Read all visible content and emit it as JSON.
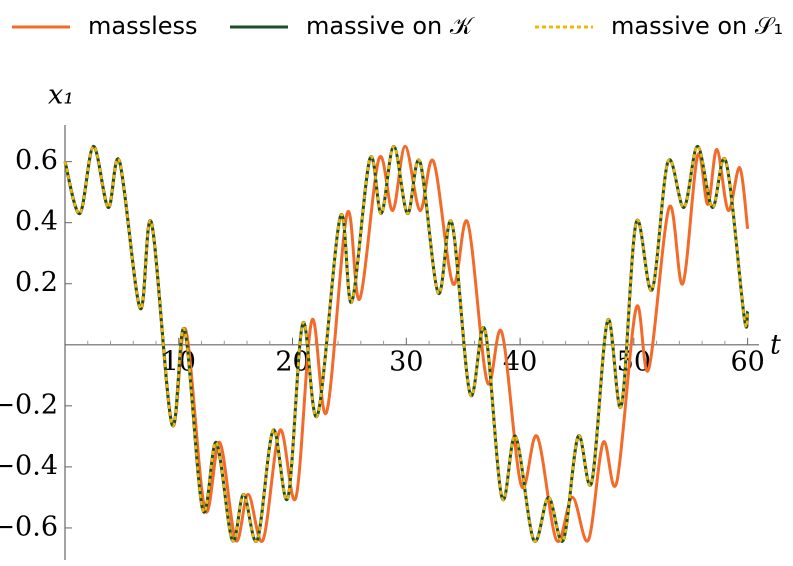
{
  "chart_data": {
    "type": "line",
    "xlabel": "t",
    "ylabel": "x₁",
    "xlim": [
      0,
      61
    ],
    "ylim": [
      -0.705,
      0.72
    ],
    "xticks": [
      10,
      20,
      30,
      40,
      50,
      60
    ],
    "yticks": [
      {
        "value": -0.6,
        "label": "−0.6"
      },
      {
        "value": -0.4,
        "label": "−0.4"
      },
      {
        "value": -0.2,
        "label": "−0.2"
      },
      0.2,
      0.4,
      0.6
    ],
    "series": [
      {
        "name": "massless",
        "color": "#f26b2a",
        "dashed": false,
        "x": [
          0,
          1.3,
          2.5,
          3.8,
          4.8,
          6.6,
          7.6,
          9.4,
          10.6,
          12.3,
          13.6,
          15.0,
          16.1,
          17.4,
          18.9,
          20.3,
          21.7,
          23.0,
          24.8,
          25.9,
          27.6,
          28.8,
          29.9,
          31.2,
          32.4,
          34.1,
          35.4,
          37.1,
          38.4,
          40.1,
          41.5,
          43.2,
          44.6,
          46.0,
          47.3,
          48.5,
          50.2,
          51.3,
          53.1,
          54.3,
          55.6,
          56.5,
          57.3,
          58.3,
          59.3,
          60
        ],
        "values": [
          0.6,
          0.43,
          0.65,
          0.45,
          0.6,
          0.12,
          0.4,
          -0.26,
          0.05,
          -0.54,
          -0.32,
          -0.64,
          -0.49,
          -0.64,
          -0.28,
          -0.5,
          0.08,
          -0.22,
          0.43,
          0.15,
          0.61,
          0.44,
          0.65,
          0.44,
          0.6,
          0.2,
          0.4,
          -0.12,
          0.04,
          -0.46,
          -0.3,
          -0.64,
          -0.5,
          -0.64,
          -0.32,
          -0.45,
          0.12,
          -0.08,
          0.45,
          0.2,
          0.62,
          0.46,
          0.64,
          0.44,
          0.58,
          0.38
        ]
      },
      {
        "name": "massive on 𝒦",
        "color": "#1e4d2b",
        "dashed": false,
        "x": [
          0,
          1.3,
          2.5,
          3.8,
          4.8,
          6.6,
          7.6,
          9.4,
          10.5,
          12.1,
          13.3,
          14.7,
          15.7,
          16.9,
          18.3,
          19.6,
          20.9,
          22.2,
          24.2,
          25.2,
          26.8,
          27.8,
          28.9,
          30.1,
          31.2,
          32.8,
          34.0,
          35.6,
          36.9,
          38.4,
          39.6,
          41.2,
          42.5,
          43.8,
          45.1,
          46.3,
          47.7,
          48.9,
          50.2,
          51.6,
          53.0,
          54.4,
          55.6,
          56.9,
          58.1,
          59.7,
          60
        ],
        "values": [
          0.6,
          0.43,
          0.65,
          0.45,
          0.6,
          0.12,
          0.4,
          -0.26,
          0.05,
          -0.54,
          -0.32,
          -0.64,
          -0.49,
          -0.64,
          -0.28,
          -0.5,
          0.07,
          -0.23,
          0.42,
          0.14,
          0.61,
          0.43,
          0.65,
          0.43,
          0.6,
          0.17,
          0.4,
          -0.16,
          0.05,
          -0.5,
          -0.3,
          -0.64,
          -0.5,
          -0.64,
          -0.3,
          -0.45,
          0.08,
          -0.2,
          0.4,
          0.18,
          0.6,
          0.45,
          0.65,
          0.45,
          0.6,
          0.09,
          0.11
        ]
      },
      {
        "name": "massive on 𝒮₁",
        "color": "#f5b800",
        "dashed": true,
        "x": [
          0,
          1.3,
          2.5,
          3.8,
          4.8,
          6.6,
          7.6,
          9.4,
          10.5,
          12.1,
          13.3,
          14.7,
          15.7,
          16.9,
          18.3,
          19.6,
          20.9,
          22.2,
          24.2,
          25.2,
          26.8,
          27.8,
          28.9,
          30.1,
          31.2,
          32.8,
          34.0,
          35.6,
          36.9,
          38.4,
          39.6,
          41.2,
          42.5,
          43.8,
          45.1,
          46.3,
          47.7,
          48.9,
          50.2,
          51.6,
          53.0,
          54.4,
          55.6,
          56.9,
          58.1,
          59.7,
          60
        ],
        "values": [
          0.6,
          0.43,
          0.65,
          0.45,
          0.6,
          0.12,
          0.4,
          -0.26,
          0.05,
          -0.54,
          -0.32,
          -0.64,
          -0.49,
          -0.64,
          -0.28,
          -0.5,
          0.07,
          -0.23,
          0.42,
          0.14,
          0.61,
          0.43,
          0.65,
          0.43,
          0.6,
          0.17,
          0.4,
          -0.16,
          0.05,
          -0.5,
          -0.3,
          -0.64,
          -0.5,
          -0.64,
          -0.3,
          -0.45,
          0.08,
          -0.2,
          0.4,
          0.18,
          0.6,
          0.45,
          0.65,
          0.45,
          0.6,
          0.09,
          0.11
        ]
      }
    ]
  }
}
